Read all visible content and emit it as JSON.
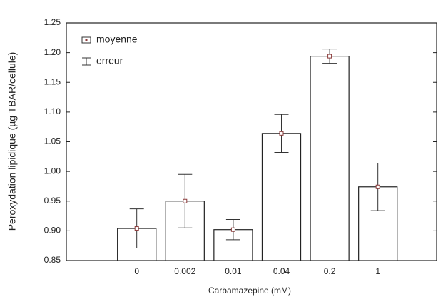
{
  "chart_data": {
    "type": "bar",
    "y_label": "Peroxydation lipidique (µg TBAR/cellule)",
    "x_label": "Carbamazepine (mM)",
    "categories": [
      "0",
      "0.002",
      "0.01",
      "0.04",
      "0.2",
      "1"
    ],
    "values": [
      0.904,
      0.95,
      0.902,
      1.064,
      1.194,
      0.974
    ],
    "errors": [
      0.033,
      0.045,
      0.017,
      0.032,
      0.012,
      0.04
    ],
    "color": "#ffffff",
    "edge_color": "#222222",
    "marker_color": "#8b3a3a",
    "ylim": [
      0.85,
      1.25
    ],
    "yticks": [
      0.85,
      {
        "value": 0.9,
        "label": "0.90"
      },
      0.95,
      {
        "value": 1,
        "label": "1.00"
      },
      1.05,
      {
        "value": 1.1,
        "label": "1.10"
      },
      1.15,
      {
        "value": 1.2,
        "label": "1.20"
      },
      1.25
    ],
    "grid": false,
    "legend": {
      "position": "upper left",
      "mean": "moyenne",
      "error": "erreur"
    }
  }
}
